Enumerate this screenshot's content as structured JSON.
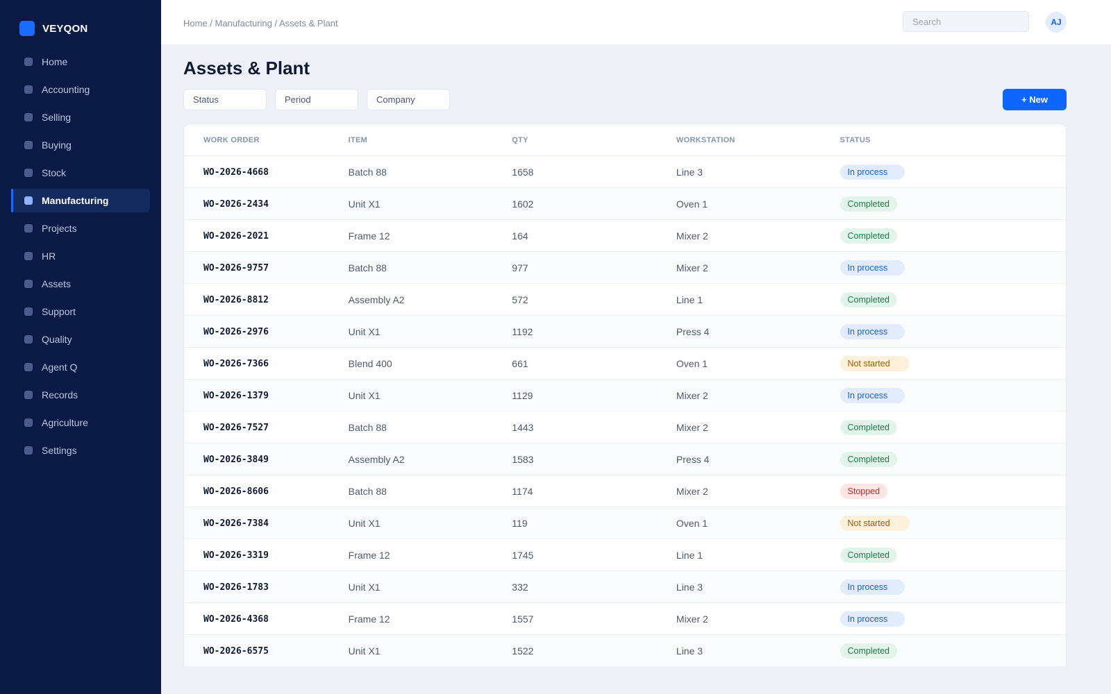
{
  "brand": {
    "name": "VEYQON"
  },
  "sidebar": {
    "items": [
      {
        "label": "Home"
      },
      {
        "label": "Accounting"
      },
      {
        "label": "Selling"
      },
      {
        "label": "Buying"
      },
      {
        "label": "Stock"
      },
      {
        "label": "Manufacturing"
      },
      {
        "label": "Projects"
      },
      {
        "label": "HR"
      },
      {
        "label": "Assets"
      },
      {
        "label": "Support"
      },
      {
        "label": "Quality"
      },
      {
        "label": "Agent Q"
      },
      {
        "label": "Records"
      },
      {
        "label": "Agriculture"
      },
      {
        "label": "Settings"
      }
    ],
    "active_item": "Manufacturing"
  },
  "header": {
    "breadcrumb": "Home / Manufacturing / Assets & Plant",
    "search_placeholder": "Search",
    "search_value": "",
    "avatar_initials": "AJ"
  },
  "page": {
    "title": "Assets & Plant",
    "filters": {
      "status": "Status",
      "period": "Period",
      "company": "Company"
    },
    "new_button_label": "+ New"
  },
  "table": {
    "columns": {
      "work_order": "WORK ORDER",
      "item": "ITEM",
      "qty": "QTY",
      "workstation": "WORKSTATION",
      "status": "STATUS"
    },
    "rows": [
      {
        "work_order": "WO-2026-4668",
        "item": "Batch 88",
        "qty": "1658",
        "workstation": "Line 3",
        "status": "In process"
      },
      {
        "work_order": "WO-2026-2434",
        "item": "Unit X1",
        "qty": "1602",
        "workstation": "Oven 1",
        "status": "Completed"
      },
      {
        "work_order": "WO-2026-2021",
        "item": "Frame 12",
        "qty": "164",
        "workstation": "Mixer 2",
        "status": "Completed"
      },
      {
        "work_order": "WO-2026-9757",
        "item": "Batch 88",
        "qty": "977",
        "workstation": "Mixer 2",
        "status": "In process"
      },
      {
        "work_order": "WO-2026-8812",
        "item": "Assembly A2",
        "qty": "572",
        "workstation": "Line 1",
        "status": "Completed"
      },
      {
        "work_order": "WO-2026-2976",
        "item": "Unit X1",
        "qty": "1192",
        "workstation": "Press 4",
        "status": "In process"
      },
      {
        "work_order": "WO-2026-7366",
        "item": "Blend 400",
        "qty": "661",
        "workstation": "Oven 1",
        "status": "Not started"
      },
      {
        "work_order": "WO-2026-1379",
        "item": "Unit X1",
        "qty": "1129",
        "workstation": "Mixer 2",
        "status": "In process"
      },
      {
        "work_order": "WO-2026-7527",
        "item": "Batch 88",
        "qty": "1443",
        "workstation": "Mixer 2",
        "status": "Completed"
      },
      {
        "work_order": "WO-2026-3849",
        "item": "Assembly A2",
        "qty": "1583",
        "workstation": "Press 4",
        "status": "Completed"
      },
      {
        "work_order": "WO-2026-8606",
        "item": "Batch 88",
        "qty": "1174",
        "workstation": "Mixer 2",
        "status": "Stopped"
      },
      {
        "work_order": "WO-2026-7384",
        "item": "Unit X1",
        "qty": "119",
        "workstation": "Oven 1",
        "status": "Not started"
      },
      {
        "work_order": "WO-2026-3319",
        "item": "Frame 12",
        "qty": "1745",
        "workstation": "Line 1",
        "status": "Completed"
      },
      {
        "work_order": "WO-2026-1783",
        "item": "Unit X1",
        "qty": "332",
        "workstation": "Line 3",
        "status": "In process"
      },
      {
        "work_order": "WO-2026-4368",
        "item": "Frame 12",
        "qty": "1557",
        "workstation": "Mixer 2",
        "status": "In process"
      },
      {
        "work_order": "WO-2026-6575",
        "item": "Unit X1",
        "qty": "1522",
        "workstation": "Line 3",
        "status": "Completed"
      }
    ]
  },
  "colors": {
    "sidebar_bg": "#0b1a45",
    "accent": "#0d66ff",
    "page_bg": "#eef2f8",
    "status_in_process": "#1a5fd8",
    "status_completed": "#1d7a46",
    "status_not_started": "#9a5a0c",
    "status_stopped": "#c22b2b"
  },
  "icons": {
    "brand": "brand-logo-icon",
    "nav_item": "nav-square-icon"
  }
}
